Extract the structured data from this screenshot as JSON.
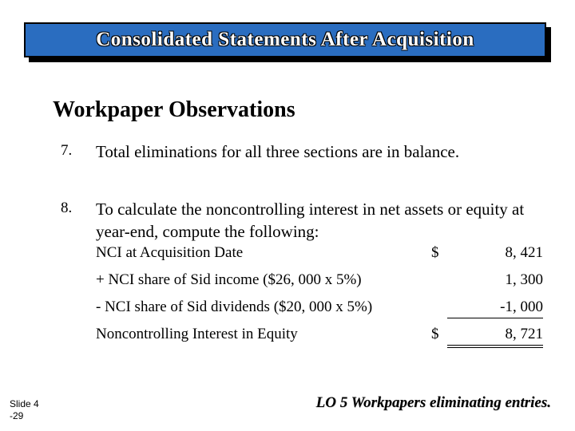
{
  "title": "Consolidated Statements After Acquisition",
  "subtitle": "Workpaper Observations",
  "items": [
    {
      "num": "7.",
      "text": "Total eliminations for all three sections are in balance."
    },
    {
      "num": "8.",
      "text": "To calculate the noncontrolling interest in net assets or equity at year-end, compute the following:"
    }
  ],
  "calc": [
    {
      "label": "NCI at Acquisition Date",
      "cur": "$",
      "amt": "8, 421",
      "cls": ""
    },
    {
      "label": "+ NCI share of Sid income ($26, 000 x 5%)",
      "cur": "",
      "amt": "1, 300",
      "cls": ""
    },
    {
      "label": "- NCI share of Sid dividends ($20, 000 x 5%)",
      "cur": "",
      "amt": "-1, 000",
      "cls": "underline-single"
    },
    {
      "label": "Noncontrolling Interest in Equity",
      "cur": "$",
      "amt": "8, 721",
      "cls": "underline-double"
    }
  ],
  "slide": {
    "line1": "Slide 4",
    "line2": "-29"
  },
  "lo": "LO 5  Workpapers eliminating entries."
}
